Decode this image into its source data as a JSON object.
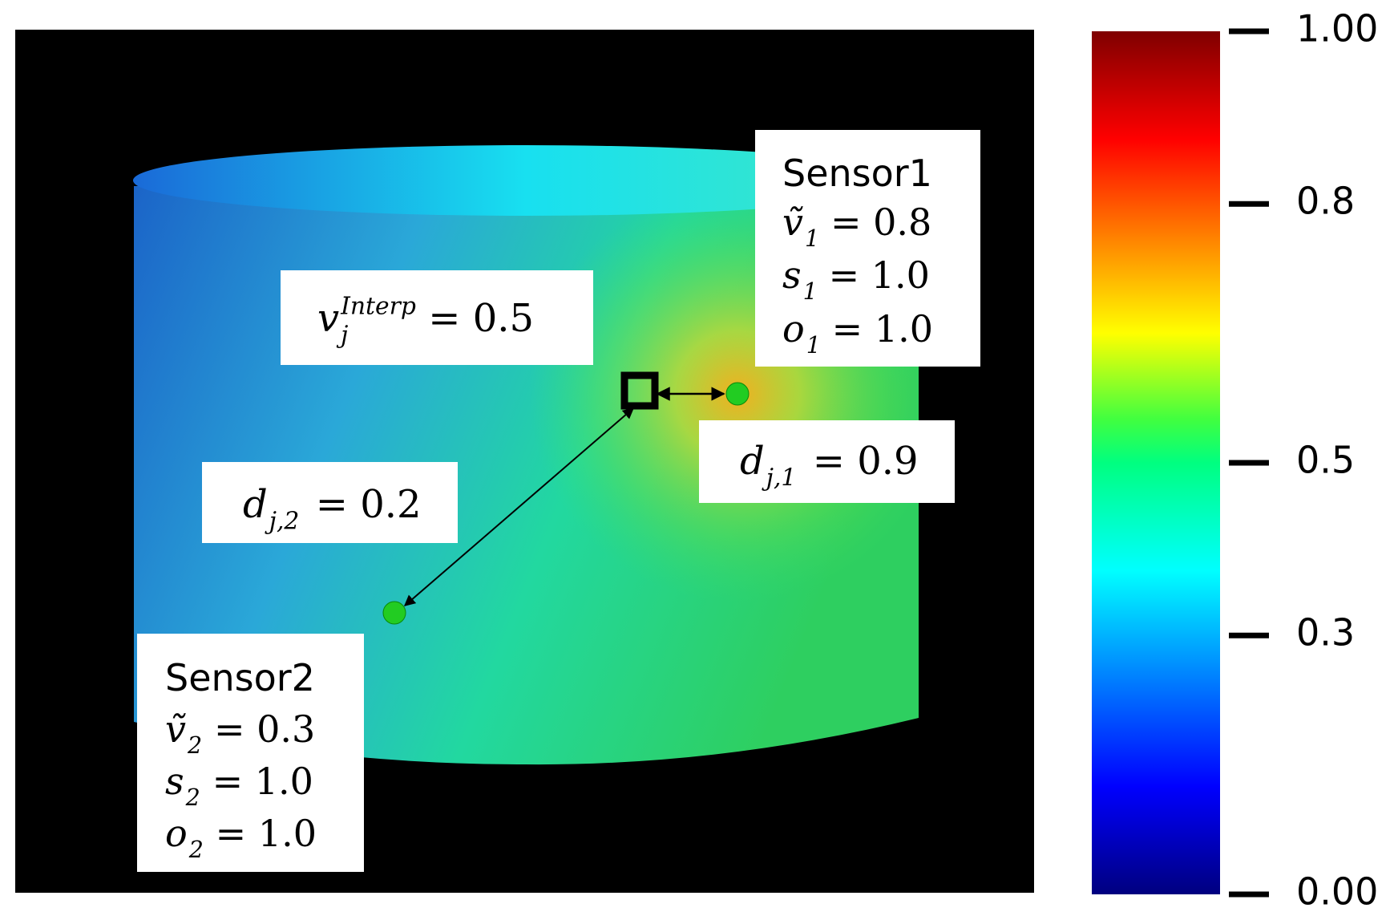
{
  "figure": {
    "colorbar": {
      "lim": [
        0,
        1
      ],
      "ticks": [
        {
          "value": 0,
          "label": "0.00"
        },
        0.3,
        0.5,
        0.8,
        {
          "value": 1,
          "label": "1.00"
        }
      ]
    },
    "sensor1": {
      "title": "Sensor1",
      "lines": [
        {
          "symbol": "ṽ",
          "sub": "1",
          "rest": "= 0.8"
        },
        {
          "symbol": "s",
          "sub": "1",
          "rest": "= 1.0"
        },
        {
          "symbol": "o",
          "sub": "1",
          "rest": "= 1.0"
        }
      ]
    },
    "sensor2": {
      "title": "Sensor2",
      "lines": [
        {
          "symbol": "ṽ",
          "sub": "2",
          "rest": "= 0.3"
        },
        {
          "symbol": "s",
          "sub": "2",
          "rest": "= 1.0"
        },
        {
          "symbol": "o",
          "sub": "2",
          "rest": "= 1.0"
        }
      ]
    },
    "interp": {
      "symbol": "v",
      "sub": "j",
      "sup": "Interp",
      "rest": "= 0.5"
    },
    "distance1": {
      "symbol": "d",
      "sub": "j,1",
      "rest": "= 0.9"
    },
    "distance2": {
      "symbol": "d",
      "sub": "j,2",
      "rest": "= 0.2"
    }
  }
}
